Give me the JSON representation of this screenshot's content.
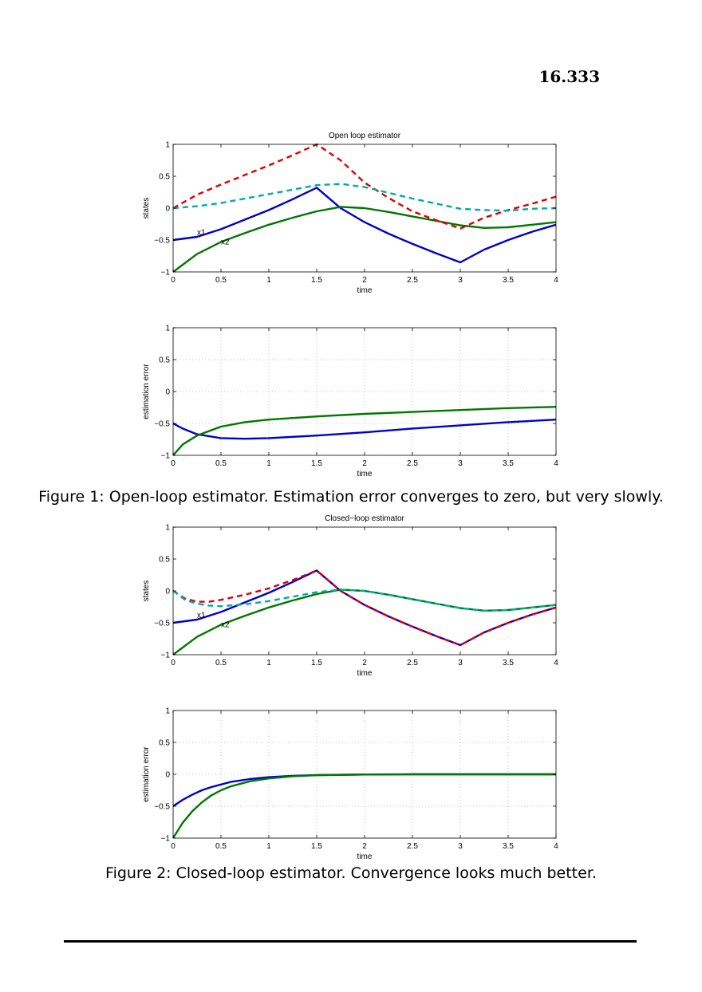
{
  "header": {
    "number": "16.333"
  },
  "figure1": {
    "caption": "Figure 1: Open-loop estimator. Estimation error converges to zero, but very slowly."
  },
  "figure2": {
    "caption": "Figure 2: Closed-loop estimator. Convergence looks much better."
  },
  "colors": {
    "x1": "#0000cc",
    "x2": "#007700",
    "x1hat": "#dd0000",
    "x2hat": "#00aaaa",
    "grid": "#b0b0b0"
  },
  "chart_data": [
    {
      "id": "open_states",
      "type": "line",
      "title": "Open loop estimator",
      "xlabel": "time",
      "ylabel": "states",
      "xlim": [
        0,
        4
      ],
      "ylim": [
        -1,
        1
      ],
      "xticks": [
        "0",
        "0.5",
        "1",
        "1.5",
        "2",
        "2.5",
        "3",
        "3.5",
        "4"
      ],
      "yticks": [
        "-1",
        "-0.5",
        "0",
        "0.5",
        "1"
      ],
      "grid": false,
      "annotations": [
        {
          "text": "x1",
          "x": 0.25,
          "y": -0.42
        },
        {
          "text": "x2",
          "x": 0.5,
          "y": -0.57
        }
      ],
      "series": [
        {
          "key": "x1",
          "style": "solid",
          "x": [
            0,
            0.25,
            0.5,
            0.75,
            1,
            1.25,
            1.5,
            1.75,
            2,
            2.25,
            2.5,
            2.75,
            3,
            3.25,
            3.5,
            3.75,
            4
          ],
          "y": [
            -0.5,
            -0.45,
            -0.33,
            -0.18,
            -0.03,
            0.14,
            0.32,
            0.0,
            -0.22,
            -0.4,
            -0.56,
            -0.71,
            -0.85,
            -0.65,
            -0.5,
            -0.37,
            -0.26
          ]
        },
        {
          "key": "x2",
          "style": "solid",
          "x": [
            0,
            0.25,
            0.5,
            0.75,
            1,
            1.25,
            1.5,
            1.75,
            2,
            2.25,
            2.5,
            2.75,
            3,
            3.25,
            3.5,
            3.75,
            4
          ],
          "y": [
            -1.0,
            -0.72,
            -0.53,
            -0.39,
            -0.26,
            -0.15,
            -0.05,
            0.02,
            0.0,
            -0.06,
            -0.13,
            -0.2,
            -0.27,
            -0.31,
            -0.3,
            -0.26,
            -0.22
          ]
        },
        {
          "key": "x1hat",
          "style": "dashed",
          "x": [
            0,
            0.25,
            0.5,
            0.75,
            1,
            1.25,
            1.5,
            1.75,
            2,
            2.25,
            2.5,
            2.75,
            3,
            3.25,
            3.5,
            3.75,
            4
          ],
          "y": [
            0.0,
            0.21,
            0.37,
            0.52,
            0.67,
            0.83,
            1.0,
            0.75,
            0.4,
            0.16,
            -0.05,
            -0.19,
            -0.32,
            -0.15,
            -0.03,
            0.07,
            0.18
          ]
        },
        {
          "key": "x2hat",
          "style": "dashed",
          "x": [
            0,
            0.25,
            0.5,
            0.75,
            1,
            1.25,
            1.5,
            1.75,
            2,
            2.25,
            2.5,
            2.75,
            3,
            3.25,
            3.5,
            3.75,
            4
          ],
          "y": [
            0.0,
            0.03,
            0.08,
            0.15,
            0.22,
            0.29,
            0.36,
            0.38,
            0.33,
            0.24,
            0.15,
            0.07,
            -0.01,
            -0.03,
            -0.04,
            -0.01,
            0.0
          ]
        }
      ]
    },
    {
      "id": "open_error",
      "type": "line",
      "title": "",
      "xlabel": "time",
      "ylabel": "estimation error",
      "xlim": [
        0,
        4
      ],
      "ylim": [
        -1,
        1
      ],
      "xticks": [
        "0",
        "0.5",
        "1",
        "1.5",
        "2",
        "2.5",
        "3",
        "3.5",
        "4"
      ],
      "yticks": [
        "-1",
        "-0.5",
        "0",
        "0.5",
        "1"
      ],
      "grid": true,
      "annotations": [],
      "series": [
        {
          "key": "x1",
          "style": "solid",
          "x": [
            0,
            0.1,
            0.25,
            0.5,
            0.75,
            1,
            1.5,
            2,
            2.5,
            3,
            3.5,
            4
          ],
          "y": [
            -0.5,
            -0.58,
            -0.67,
            -0.73,
            -0.74,
            -0.73,
            -0.69,
            -0.64,
            -0.58,
            -0.53,
            -0.48,
            -0.44
          ]
        },
        {
          "key": "x2",
          "style": "solid",
          "x": [
            0,
            0.1,
            0.25,
            0.5,
            0.75,
            1,
            1.5,
            2,
            2.5,
            3,
            3.5,
            4
          ],
          "y": [
            -1.0,
            -0.83,
            -0.69,
            -0.55,
            -0.48,
            -0.44,
            -0.39,
            -0.35,
            -0.32,
            -0.29,
            -0.26,
            -0.24
          ]
        }
      ]
    },
    {
      "id": "closed_states",
      "type": "line",
      "title": "Closed−loop estimator",
      "xlabel": "time",
      "ylabel": "states",
      "xlim": [
        0,
        4
      ],
      "ylim": [
        -1,
        1
      ],
      "xticks": [
        "0",
        "0.5",
        "1",
        "1.5",
        "2",
        "2.5",
        "3",
        "3.5",
        "4"
      ],
      "yticks": [
        "-1",
        "-0.5",
        "0",
        "0.5",
        "1"
      ],
      "grid": false,
      "annotations": [
        {
          "text": "x1",
          "x": 0.25,
          "y": -0.42
        },
        {
          "text": "x2",
          "x": 0.5,
          "y": -0.57
        }
      ],
      "series": [
        {
          "key": "x1",
          "style": "solid",
          "x": [
            0,
            0.25,
            0.5,
            0.75,
            1,
            1.25,
            1.5,
            1.75,
            2,
            2.25,
            2.5,
            2.75,
            3,
            3.25,
            3.5,
            3.75,
            4
          ],
          "y": [
            -0.5,
            -0.45,
            -0.33,
            -0.18,
            -0.03,
            0.14,
            0.32,
            0.0,
            -0.22,
            -0.4,
            -0.56,
            -0.71,
            -0.85,
            -0.65,
            -0.5,
            -0.37,
            -0.26
          ]
        },
        {
          "key": "x2",
          "style": "solid",
          "x": [
            0,
            0.25,
            0.5,
            0.75,
            1,
            1.25,
            1.5,
            1.75,
            2,
            2.25,
            2.5,
            2.75,
            3,
            3.25,
            3.5,
            3.75,
            4
          ],
          "y": [
            -1.0,
            -0.72,
            -0.53,
            -0.39,
            -0.26,
            -0.15,
            -0.05,
            0.02,
            0.0,
            -0.06,
            -0.13,
            -0.2,
            -0.27,
            -0.31,
            -0.3,
            -0.26,
            -0.22
          ]
        },
        {
          "key": "x1hat",
          "style": "dashed",
          "x": [
            0,
            0.125,
            0.25,
            0.375,
            0.5,
            0.75,
            1,
            1.25,
            1.5,
            1.75,
            2,
            2.25,
            2.5,
            2.75,
            3,
            3.25,
            3.5,
            3.75,
            4
          ],
          "y": [
            0.0,
            -0.12,
            -0.17,
            -0.17,
            -0.14,
            -0.06,
            0.04,
            0.17,
            0.32,
            0.0,
            -0.22,
            -0.4,
            -0.56,
            -0.71,
            -0.85,
            -0.65,
            -0.5,
            -0.37,
            -0.26
          ]
        },
        {
          "key": "x2hat",
          "style": "dashed",
          "x": [
            0,
            0.125,
            0.25,
            0.375,
            0.5,
            0.75,
            1,
            1.25,
            1.5,
            1.75,
            2,
            2.25,
            2.5,
            2.75,
            3,
            3.25,
            3.5,
            3.75,
            4
          ],
          "y": [
            0.0,
            -0.14,
            -0.2,
            -0.23,
            -0.24,
            -0.21,
            -0.16,
            -0.09,
            -0.02,
            0.02,
            0.0,
            -0.06,
            -0.13,
            -0.2,
            -0.27,
            -0.31,
            -0.3,
            -0.26,
            -0.22
          ]
        }
      ]
    },
    {
      "id": "closed_error",
      "type": "line",
      "title": "",
      "xlabel": "time",
      "ylabel": "estimation error",
      "xlim": [
        0,
        4
      ],
      "ylim": [
        -1,
        1
      ],
      "xticks": [
        "0",
        "0.5",
        "1",
        "1.5",
        "2",
        "2.5",
        "3",
        "3.5",
        "4"
      ],
      "yticks": [
        "-1",
        "-0.5",
        "0",
        "0.5",
        "1"
      ],
      "grid": true,
      "annotations": [],
      "series": [
        {
          "key": "x1",
          "style": "solid",
          "x": [
            0,
            0.1,
            0.2,
            0.3,
            0.4,
            0.5,
            0.6,
            0.8,
            1,
            1.25,
            1.5,
            2,
            2.5,
            3,
            3.5,
            4
          ],
          "y": [
            -0.5,
            -0.4,
            -0.32,
            -0.25,
            -0.2,
            -0.16,
            -0.12,
            -0.075,
            -0.045,
            -0.025,
            -0.012,
            -0.003,
            0.0,
            0.0,
            0.0,
            0.0
          ]
        },
        {
          "key": "x2",
          "style": "solid",
          "x": [
            0,
            0.1,
            0.2,
            0.3,
            0.4,
            0.5,
            0.6,
            0.8,
            1,
            1.25,
            1.5,
            2,
            2.5,
            3,
            3.5,
            4
          ],
          "y": [
            -1.0,
            -0.76,
            -0.58,
            -0.44,
            -0.33,
            -0.25,
            -0.19,
            -0.11,
            -0.065,
            -0.03,
            -0.014,
            -0.003,
            0.0,
            0.0,
            0.0,
            0.0
          ]
        }
      ]
    }
  ]
}
